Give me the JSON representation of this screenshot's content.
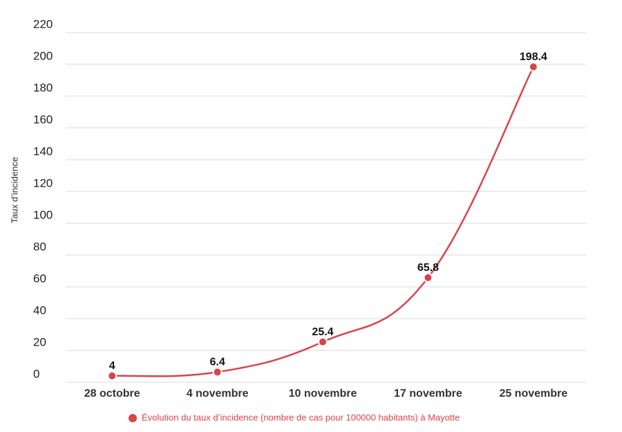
{
  "chart_data": {
    "type": "line",
    "y_label": "Taux d’incidence",
    "categories": [
      "28 octobre",
      "4 novembre",
      "10 novembre",
      "17 novembre",
      "25 novembre"
    ],
    "series": [
      {
        "name": "Évolution du taux d’incidence (nombre de cas pour 100000 habitants) à Mayotte",
        "color": "#d9434a",
        "values": [
          4,
          6.4,
          25.4,
          65.8,
          198.4
        ]
      }
    ],
    "ylim": [
      0,
      220
    ],
    "yticks": [
      0,
      20,
      40,
      60,
      80,
      100,
      120,
      140,
      160,
      180,
      200,
      220
    ],
    "grid": true,
    "legend": "bottom",
    "smooth": true
  }
}
